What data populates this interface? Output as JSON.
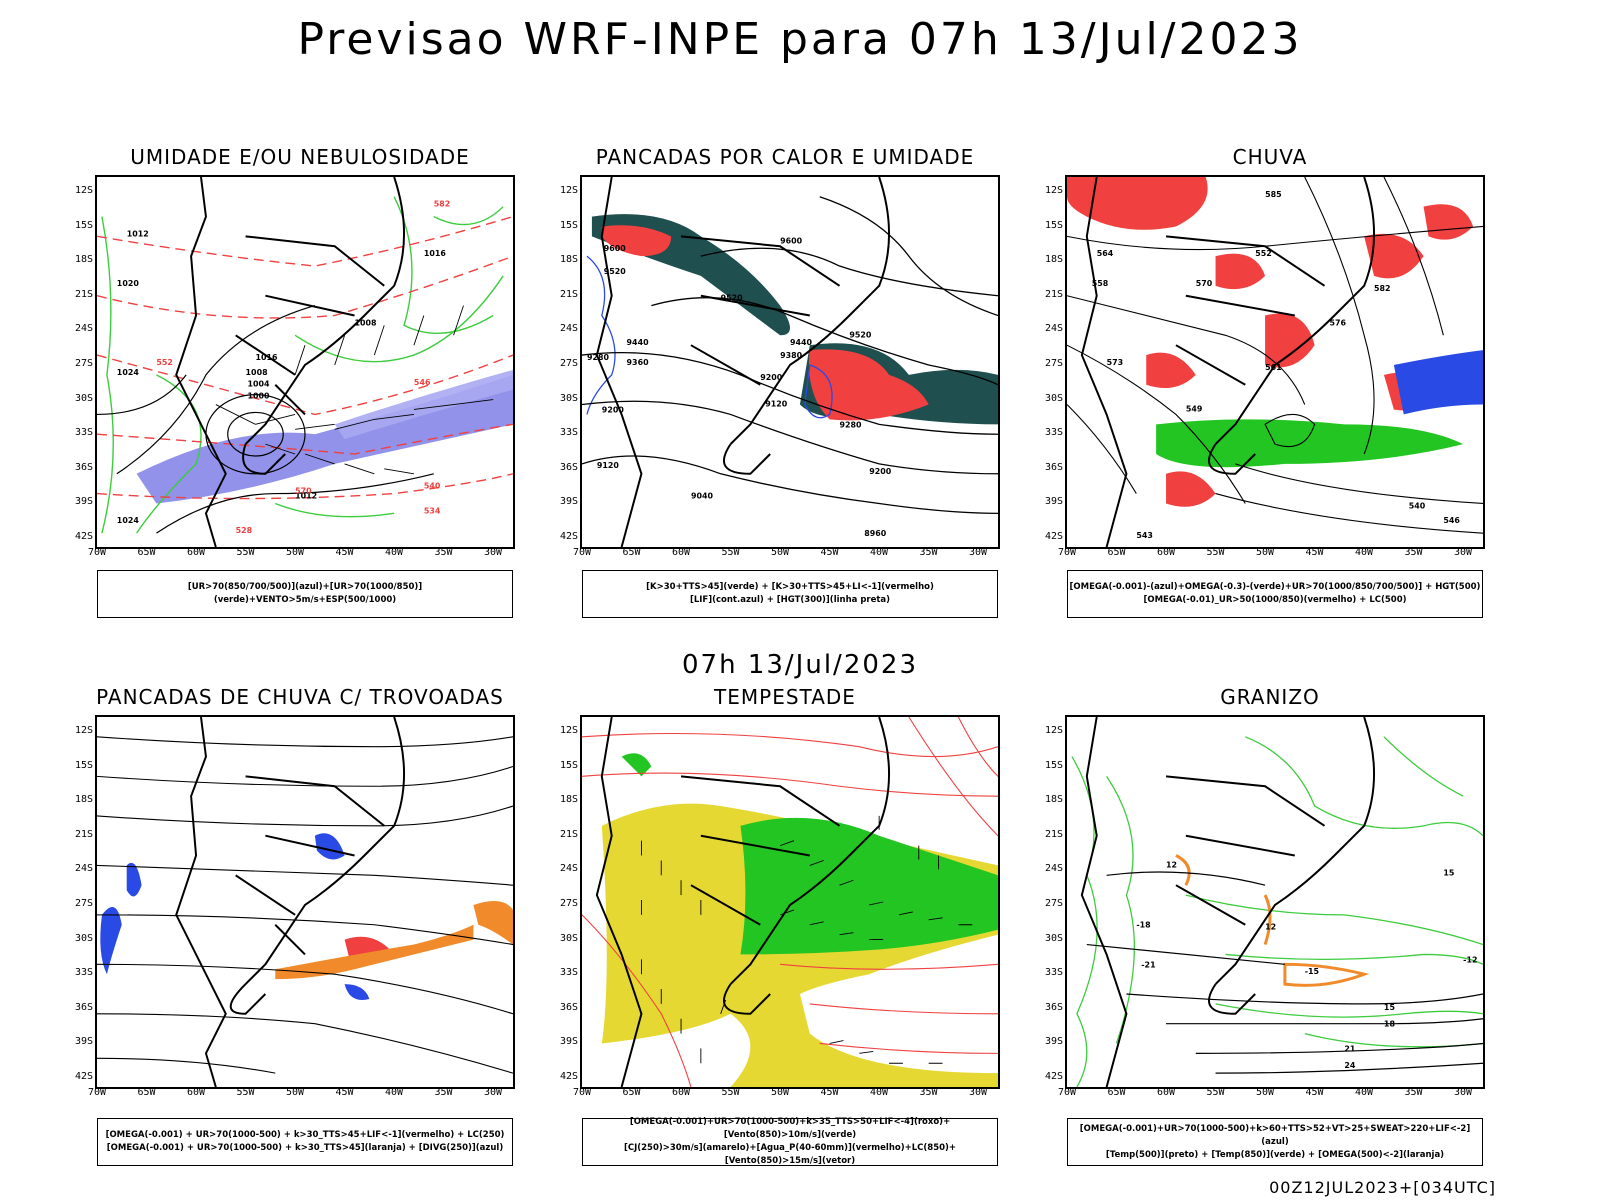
{
  "title": "Previsao WRF-INPE  para 07h 13/Jul/2023",
  "mid_date": "07h 13/Jul/2023",
  "run_label": "00Z12JUL2023+[034UTC]",
  "lat_ticks": [
    "12S",
    "15S",
    "18S",
    "21S",
    "24S",
    "27S",
    "30S",
    "33S",
    "36S",
    "39S",
    "42S"
  ],
  "lon_ticks": [
    "70W",
    "65W",
    "60W",
    "55W",
    "50W",
    "45W",
    "40W",
    "35W",
    "30W"
  ],
  "panels": [
    {
      "title": "UMIDADE E/OU NEBULOSIDADE",
      "legend": [
        "[UR>70(850/700/500)](azul)+[UR>70(1000/850)](verde)+VENTO>5m/s+ESP(500/1000)"
      ]
    },
    {
      "title": "PANCADAS POR CALOR E UMIDADE",
      "legend": [
        "[K>30+TTS>45](verde) + [K>30+TTS>45+LI<-1](vermelho)",
        "[LIF](cont.azul) + [HGT(300)](linha preta)"
      ]
    },
    {
      "title": "CHUVA",
      "legend": [
        "[OMEGA(-0.001)-(azul)+OMEGA(-0.3)-(verde)+UR>70(1000/850/700/500)] + HGT(500)",
        "[OMEGA(-0.01)_UR>50(1000/850)(vermelho) + LC(500)"
      ]
    },
    {
      "title": "PANCADAS DE CHUVA C/ TROVOADAS",
      "legend": [
        "[OMEGA(-0.001) + UR>70(1000-500) + k>30_TTS>45+LIF<-1](vermelho) + LC(250)",
        "[OMEGA(-0.001) + UR>70(1000-500) + k>30_TTS>45](laranja) + [DIVG(250)](azul)"
      ]
    },
    {
      "title": "TEMPESTADE",
      "legend": [
        "[OMEGA(-0.001)+UR>70(1000-500)+k>35_TTS>50+LIF<-4](roxo)+[Vento(850)>10m/s](verde)",
        "[CJ(250)>30m/s](amarelo)+[Agua_P(40-60mm)](vermelho)+LC(850)+[Vento(850)>15m/s](vetor)"
      ]
    },
    {
      "title": "GRANIZO",
      "legend": [
        "[OMEGA(-0.001)+UR>70(1000-500)+k>60+TTS>52+VT>25+SWEAT>220+LIF<-2](azul)",
        "[Temp(500)](preto) + [Temp(850)](verde) + [OMEGA(500)<-2](laranja)"
      ]
    }
  ],
  "map_labels": {
    "p1": [
      "1016",
      "1012",
      "1008",
      "1004",
      "1000",
      "1016",
      "1020",
      "1024",
      "1024",
      "1016",
      "1008",
      "1012",
      "570",
      "582",
      "552",
      "540",
      "534",
      "528",
      "546"
    ],
    "p2": [
      "9600",
      "9600",
      "9520",
      "9440",
      "9360",
      "9280",
      "9200",
      "9120",
      "9040",
      "8960",
      "9520",
      "9440",
      "9380",
      "9200",
      "9120",
      "9280",
      "9200",
      "9520"
    ],
    "p3": [
      "582",
      "576",
      "570",
      "564",
      "558",
      "552",
      "546",
      "540",
      "549",
      "543",
      "561",
      "573",
      "585"
    ],
    "p6": [
      "12",
      "15",
      "18",
      "21",
      "24",
      "-18",
      "-21",
      "-12",
      "-15",
      "15",
      "12"
    ]
  },
  "colors": {
    "blue_moist": "#7f7fe6",
    "green_moist": "#3ccc3c",
    "red": "#f04040",
    "dark_teal": "#1f4f4f",
    "yellow": "#e6d832",
    "bright_green": "#22c522",
    "orange": "#f08a2a",
    "blue": "#2a4ae6"
  }
}
